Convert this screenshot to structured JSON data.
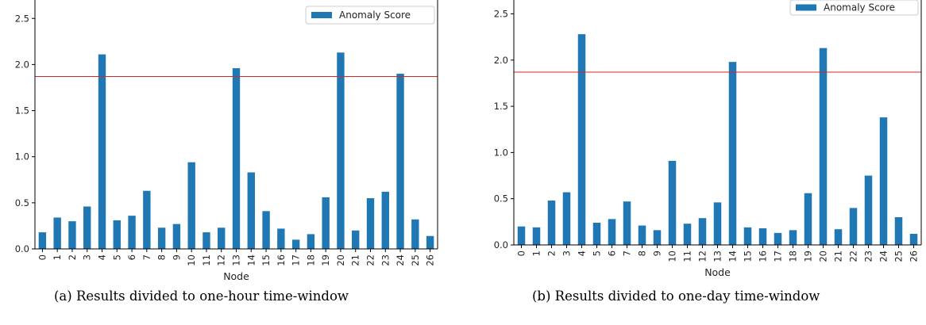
{
  "chart_data": [
    {
      "type": "bar",
      "xlabel": "Node",
      "ylabel": "",
      "ylim": [
        0,
        2.7
      ],
      "yticks": [
        0.0,
        0.5,
        1.0,
        1.5,
        2.0,
        2.5
      ],
      "ytick_labels": [
        "0.0",
        "0.5",
        "1.0",
        "1.5",
        "2.0",
        "2.5"
      ],
      "categories": [
        "0",
        "1",
        "2",
        "3",
        "4",
        "5",
        "6",
        "7",
        "8",
        "9",
        "10",
        "11",
        "12",
        "13",
        "14",
        "15",
        "16",
        "17",
        "18",
        "19",
        "20",
        "21",
        "22",
        "23",
        "24",
        "25",
        "26"
      ],
      "series": [
        {
          "name": "Anomaly Score",
          "color": "#1f77b4",
          "values": [
            0.18,
            0.34,
            0.3,
            0.46,
            2.11,
            0.31,
            0.36,
            0.63,
            0.23,
            0.27,
            0.94,
            0.18,
            0.23,
            1.96,
            0.83,
            0.41,
            0.22,
            0.1,
            0.16,
            0.56,
            2.13,
            0.2,
            0.55,
            0.62,
            1.9,
            0.32,
            0.14
          ]
        }
      ],
      "threshold": {
        "value": 1.87,
        "color": "#d62728"
      },
      "legend_position": "top-right",
      "caption": "(a) Results divided to one-hour time-window"
    },
    {
      "type": "bar",
      "xlabel": "Node",
      "ylabel": "",
      "ylim": [
        0,
        2.65
      ],
      "yticks": [
        0.0,
        0.5,
        1.0,
        1.5,
        2.0,
        2.5
      ],
      "ytick_labels": [
        "0.0",
        "0.5",
        "1.0",
        "1.5",
        "2.0",
        "2.5"
      ],
      "categories": [
        "0",
        "1",
        "2",
        "3",
        "4",
        "5",
        "6",
        "7",
        "8",
        "9",
        "10",
        "11",
        "12",
        "13",
        "14",
        "15",
        "16",
        "17",
        "18",
        "19",
        "20",
        "21",
        "22",
        "23",
        "24",
        "25",
        "26"
      ],
      "series": [
        {
          "name": "Anomaly Score",
          "color": "#1f77b4",
          "values": [
            0.2,
            0.19,
            0.48,
            0.57,
            2.28,
            0.24,
            0.28,
            0.47,
            0.21,
            0.16,
            0.91,
            0.23,
            0.29,
            0.46,
            1.98,
            0.19,
            0.18,
            0.13,
            0.16,
            0.56,
            2.13,
            0.17,
            0.4,
            0.75,
            1.38,
            0.3,
            0.12
          ]
        }
      ],
      "threshold": {
        "value": 1.87,
        "color": "#d62728"
      },
      "legend_position": "top-right",
      "caption": "(b) Results divided to one-day time-window"
    }
  ]
}
